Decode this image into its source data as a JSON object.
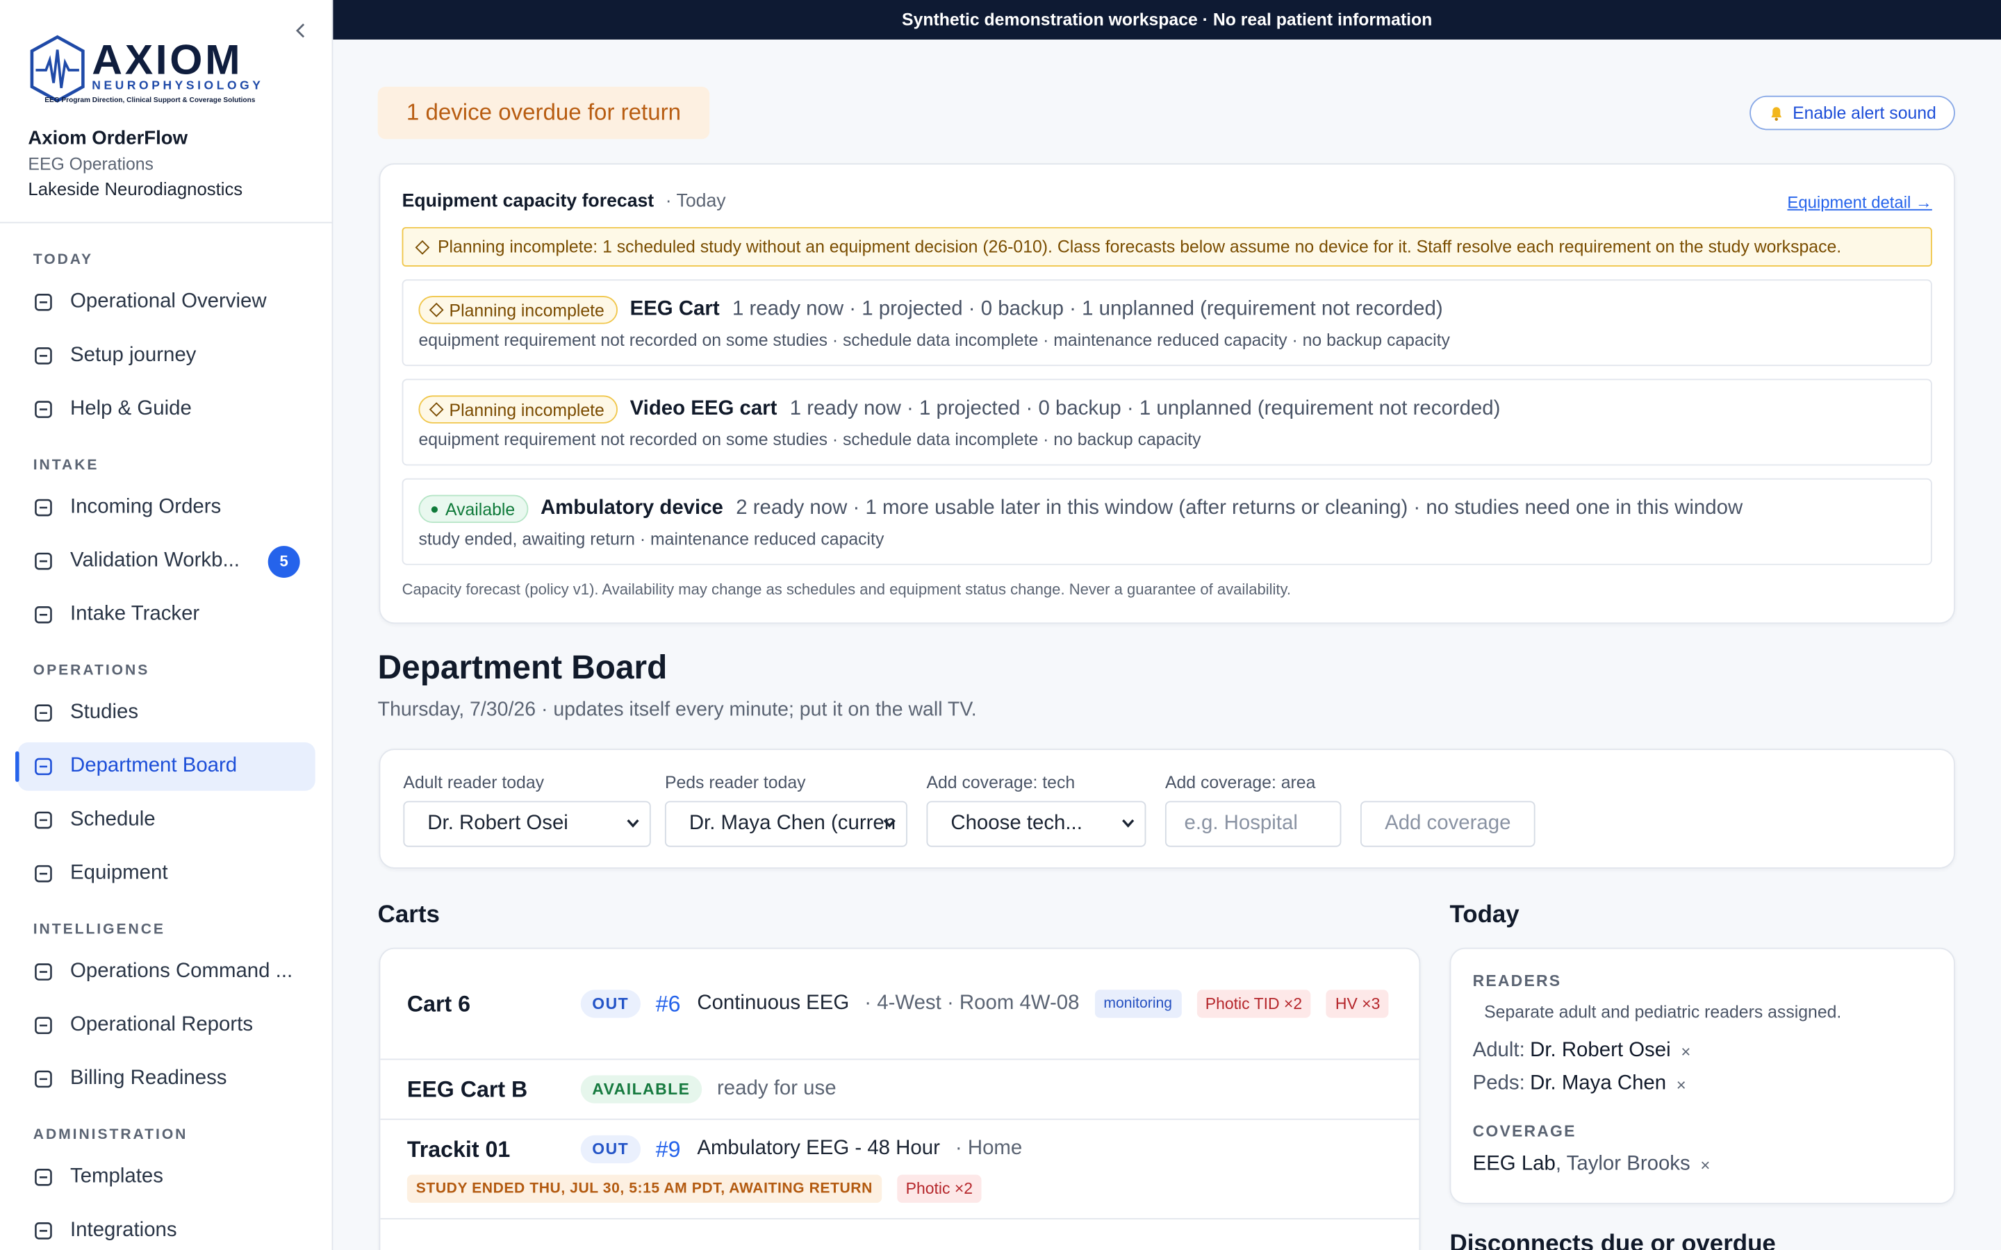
{
  "banner": "Synthetic demonstration workspace · No real patient information",
  "sidebar": {
    "logo": {
      "wordmark": "AXIOM",
      "subtitle": "NEUROPHYSIOLOGY",
      "tagline": "EEG Program Direction, Clinical Support & Coverage Solutions"
    },
    "app_name": "Axiom OrderFlow",
    "department": "EEG Operations",
    "site": "Lakeside Neurodiagnostics",
    "sections": [
      {
        "title": "TODAY",
        "items": [
          {
            "label": "Operational Overview"
          },
          {
            "label": "Setup journey"
          },
          {
            "label": "Help & Guide"
          }
        ]
      },
      {
        "title": "INTAKE",
        "items": [
          {
            "label": "Incoming Orders"
          },
          {
            "label": "Validation Workb...",
            "badge": "5"
          },
          {
            "label": "Intake Tracker"
          }
        ]
      },
      {
        "title": "OPERATIONS",
        "items": [
          {
            "label": "Studies"
          },
          {
            "label": "Department Board",
            "active": true
          },
          {
            "label": "Schedule"
          },
          {
            "label": "Equipment"
          }
        ]
      },
      {
        "title": "INTELLIGENCE",
        "items": [
          {
            "label": "Operations Command ..."
          },
          {
            "label": "Operational Reports"
          },
          {
            "label": "Billing Readiness"
          }
        ]
      },
      {
        "title": "ADMINISTRATION",
        "items": [
          {
            "label": "Templates"
          },
          {
            "label": "Integrations"
          }
        ]
      }
    ]
  },
  "alert": "1 device overdue for return",
  "alert_sound_button": "Enable alert sound",
  "forecast": {
    "title": "Equipment capacity forecast",
    "period": "· Today",
    "link": "Equipment detail →",
    "warning": "Planning incomplete: 1 scheduled study without an equipment decision (26-010). Class forecasts below assume no device for it. Staff resolve each requirement on the study workspace.",
    "rows": [
      {
        "status": "Planning incomplete",
        "status_kind": "warning",
        "name": "EEG Cart",
        "summary": "1 ready now · 1 projected · 0 backup · 1 unplanned (requirement not recorded)",
        "details": "equipment requirement not recorded on some studies · schedule data incomplete · maintenance reduced capacity · no backup capacity"
      },
      {
        "status": "Planning incomplete",
        "status_kind": "warning",
        "name": "Video EEG cart",
        "summary": "1 ready now · 1 projected · 0 backup · 1 unplanned (requirement not recorded)",
        "details": "equipment requirement not recorded on some studies · schedule data incomplete · no backup capacity"
      },
      {
        "status": "Available",
        "status_kind": "ok",
        "name": "Ambulatory device",
        "summary": "2 ready now · 1 more usable later in this window (after returns or cleaning) · no studies need one in this window",
        "details": "study ended, awaiting return · maintenance reduced capacity"
      }
    ],
    "footnote": "Capacity forecast (policy v1). Availability may change as schedules and equipment status change. Never a guarantee of availability."
  },
  "board": {
    "title": "Department Board",
    "subtitle": "Thursday, 7/30/26 · updates itself every minute; put it on the wall TV.",
    "filters": [
      {
        "label": "Adult reader today",
        "value": "Dr. Robert Osei"
      },
      {
        "label": "Peds reader today",
        "value": "Dr. Maya Chen (curren"
      },
      {
        "label": "Add coverage: tech",
        "value": "Choose tech..."
      }
    ],
    "area": {
      "label": "Add coverage: area",
      "placeholder": "e.g. Hospital"
    },
    "add_button": "Add coverage"
  },
  "carts": {
    "title": "Carts",
    "rows": [
      {
        "name": "Cart 6",
        "status": "OUT",
        "status_kind": "out",
        "study_number": "#6",
        "study": "Continuous EEG",
        "location": "· 4-West · Room 4W-08",
        "tags": [
          {
            "text": "monitoring",
            "kind": "info"
          },
          {
            "text": "Photic TID ×2",
            "kind": "alert"
          },
          {
            "text": "HV ×3",
            "kind": "alert"
          }
        ]
      },
      {
        "name": "EEG Cart B",
        "status": "AVAILABLE",
        "status_kind": "available",
        "note": "ready for use"
      },
      {
        "name": "Trackit 01",
        "status": "OUT",
        "status_kind": "out",
        "study_number": "#9",
        "study": "Ambulatory EEG - 48 Hour",
        "location": "· Home",
        "tags": [
          {
            "text": "STUDY ENDED THU, JUL 30, 5:15 AM PDT, AWAITING RETURN",
            "kind": "warn"
          },
          {
            "text": "Photic ×2",
            "kind": "alert"
          }
        ]
      }
    ]
  },
  "today": {
    "title": "Today",
    "readers_title": "READERS",
    "readers_note": "Separate adult and pediatric readers assigned.",
    "readers": [
      {
        "role": "Adult:",
        "name": "Dr. Robert Osei",
        "remove": "×"
      },
      {
        "role": "Peds:",
        "name": "Dr. Maya Chen",
        "remove": "×"
      }
    ],
    "coverage_title": "COVERAGE",
    "coverage": [
      {
        "area": "EEG Lab",
        "tech": ", Taylor Brooks",
        "remove": "×"
      }
    ]
  },
  "next_section_title": "Disconnects due or overdue"
}
